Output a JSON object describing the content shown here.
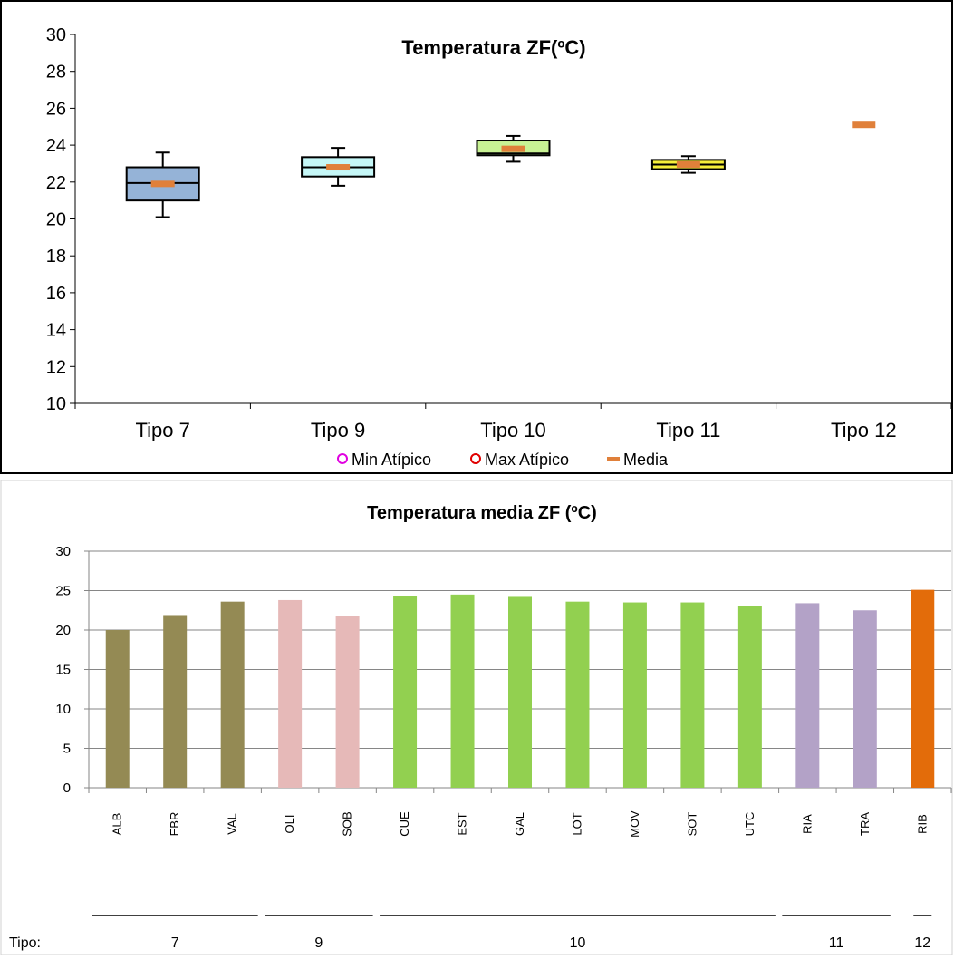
{
  "charts": {
    "top": {
      "title": "Temperatura ZF(ºC)",
      "legend": {
        "min_atipico": "Min Atípico",
        "max_atipico": "Max Atípico",
        "media": "Media"
      }
    },
    "bottom": {
      "title": "Temperatura media ZF (ºC)",
      "tipo_label": "Tipo:"
    }
  },
  "chart_data": [
    {
      "type": "box",
      "title": "Temperatura ZF(ºC)",
      "ylim": [
        10,
        30
      ],
      "yticks": [
        10,
        12,
        14,
        16,
        18,
        20,
        22,
        24,
        26,
        28,
        30
      ],
      "legend_position": "bottom",
      "categories": [
        "Tipo 7",
        "Tipo 9",
        "Tipo 10",
        "Tipo 11",
        "Tipo 12"
      ],
      "boxes": [
        {
          "category": "Tipo 7",
          "min": 20.1,
          "q1": 21.0,
          "median": 21.95,
          "q3": 22.8,
          "max": 23.6,
          "mean": 21.9,
          "fill": "#95b3d7"
        },
        {
          "category": "Tipo 9",
          "min": 21.8,
          "q1": 22.3,
          "median": 22.8,
          "q3": 23.35,
          "max": 23.85,
          "mean": 22.8,
          "fill": "#c5f7f7"
        },
        {
          "category": "Tipo 10",
          "min": 23.1,
          "q1": 23.45,
          "median": 23.55,
          "q3": 24.25,
          "max": 24.5,
          "mean": 23.8,
          "fill": "#c8f294"
        },
        {
          "category": "Tipo 11",
          "min": 22.5,
          "q1": 22.7,
          "median": 22.95,
          "q3": 23.2,
          "max": 23.4,
          "mean": 22.95,
          "fill": "#f5ef3a"
        },
        {
          "category": "Tipo 12",
          "min": null,
          "q1": null,
          "median": null,
          "q3": null,
          "max": null,
          "mean": 25.1,
          "fill": null
        }
      ],
      "colors": {
        "mean": "#e0803a",
        "min_atipico": "#e000e0",
        "max_atipico": "#e00000"
      }
    },
    {
      "type": "bar",
      "title": "Temperatura media ZF (ºC)",
      "ylim": [
        0,
        30
      ],
      "yticks": [
        0,
        5,
        10,
        15,
        20,
        25,
        30
      ],
      "grid": true,
      "categories": [
        "ALB",
        "EBR",
        "VAL",
        "OLI",
        "SOB",
        "CUE",
        "EST",
        "GAL",
        "LOT",
        "MOV",
        "SOT",
        "UTC",
        "RIA",
        "TRA",
        "RIB"
      ],
      "values": [
        20.0,
        21.9,
        23.6,
        23.8,
        21.8,
        24.3,
        24.5,
        24.2,
        23.6,
        23.5,
        23.5,
        23.1,
        23.4,
        22.5,
        25.1
      ],
      "bar_colors": [
        "#948a54",
        "#948a54",
        "#948a54",
        "#e6b9b8",
        "#e6b9b8",
        "#92d050",
        "#92d050",
        "#92d050",
        "#92d050",
        "#92d050",
        "#92d050",
        "#92d050",
        "#b3a2c7",
        "#b3a2c7",
        "#e36c0a"
      ],
      "groups": [
        {
          "label": "7",
          "members": [
            "ALB",
            "EBR",
            "VAL"
          ]
        },
        {
          "label": "9",
          "members": [
            "OLI",
            "SOB"
          ]
        },
        {
          "label": "10",
          "members": [
            "CUE",
            "EST",
            "GAL",
            "LOT",
            "MOV",
            "SOT",
            "UTC"
          ]
        },
        {
          "label": "11",
          "members": [
            "RIA",
            "TRA"
          ]
        },
        {
          "label": "12",
          "members": [
            "RIB"
          ]
        }
      ]
    }
  ]
}
